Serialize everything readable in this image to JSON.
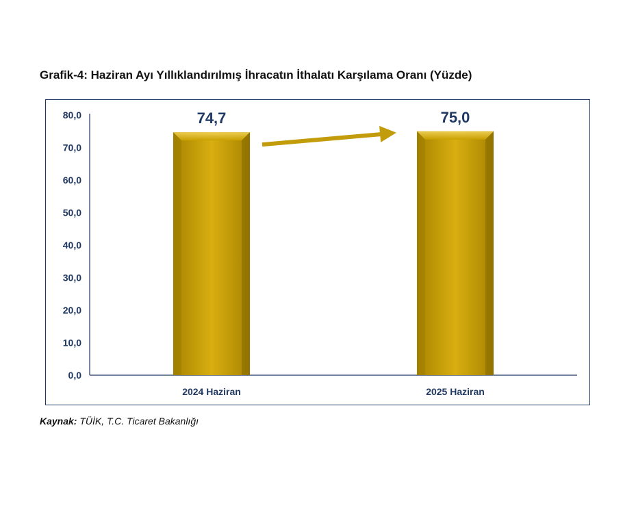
{
  "title": "Grafik-4: Haziran Ayı Yıllıklandırılmış İhracatın İthalatı Karşılama Oranı (Yüzde)",
  "source": {
    "label": "Kaynak:",
    "text": " TÜİK, T.C. Ticaret Bakanlığı"
  },
  "colors": {
    "bar": "#c9a000",
    "bar_light": "#e6c23a",
    "bar_dark": "#8a6e00",
    "axis": "#1f3864",
    "arrow": "#c29c0a"
  },
  "chart_data": {
    "type": "bar",
    "title": "Grafik-4: Haziran Ayı Yıllıklandırılmış İhracatın İthalatı Karşılama Oranı (Yüzde)",
    "categories": [
      "2024 Haziran",
      "2025 Haziran"
    ],
    "values": [
      74.7,
      75.0
    ],
    "data_labels": [
      "74,7",
      "75,0"
    ],
    "ylim": [
      0,
      80
    ],
    "yticks": [
      "0,0",
      "10,0",
      "20,0",
      "30,0",
      "40,0",
      "50,0",
      "60,0",
      "70,0",
      "80,0"
    ],
    "grid": false,
    "legend": "none",
    "annotation": "arrow between bars indicating increase"
  }
}
